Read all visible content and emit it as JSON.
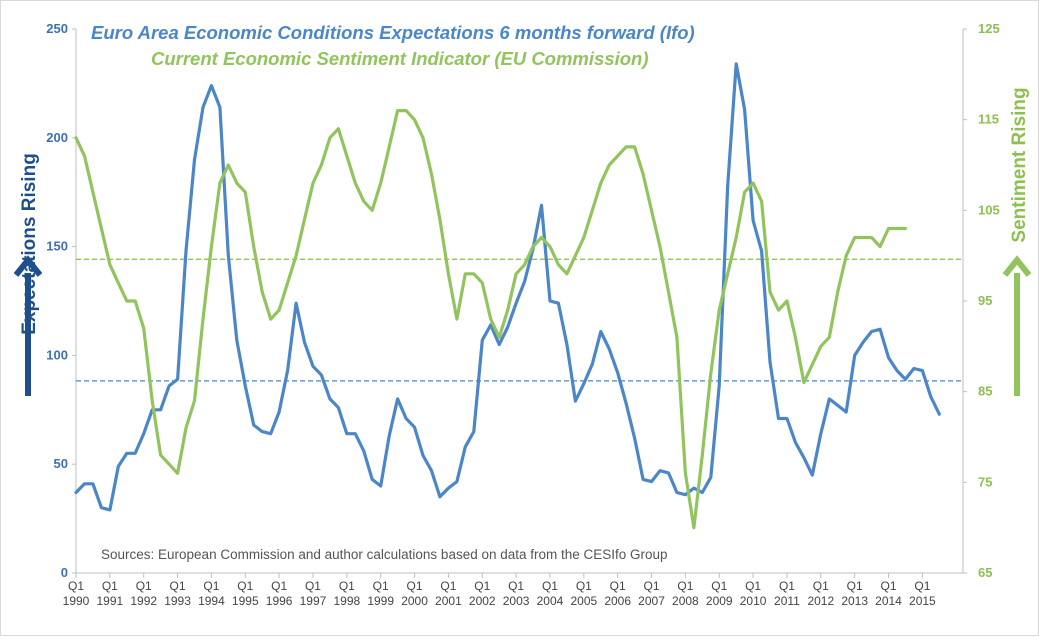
{
  "chart_data": {
    "type": "line",
    "title_series1": "Euro Area Economic Conditions Expectations 6 months forward (Ifo)",
    "title_series2": "Current Economic Sentiment Indicator (EU Commission)",
    "left_axis_label": "Expectations Rising",
    "right_axis_label": "Sentiment Rising",
    "source_note": "Sources: European Commission and author calculations based on data from the CESIfo Group",
    "colors": {
      "series1": "#4a86c8",
      "series2": "#92c45e",
      "axis_left_text": "#3f6fb3",
      "axis_right_text": "#8cc051",
      "arrow_left": "#1f4f8b",
      "arrow_right": "#92c45e"
    },
    "x_start_year": 1990,
    "x_end_year": 2015.75,
    "x_tick_quarter_label": "Q1",
    "x_tick_years": [
      "1990",
      "1991",
      "1992",
      "1993",
      "1994",
      "1995",
      "1996",
      "1997",
      "1998",
      "1999",
      "2000",
      "2001",
      "2002",
      "2003",
      "2004",
      "2005",
      "2006",
      "2007",
      "2008",
      "2009",
      "2010",
      "2011",
      "2012",
      "2013",
      "2014",
      "2015"
    ],
    "left_ylim": [
      0,
      250
    ],
    "left_ticks": [
      "0",
      "50",
      "100",
      "150",
      "200",
      "250"
    ],
    "right_ylim": [
      65,
      125
    ],
    "right_ticks": [
      "65",
      "75",
      "85",
      "95",
      "105",
      "115",
      "125"
    ],
    "series": [
      {
        "name": "Ifo Expectations (6 months forward)",
        "axis": "left",
        "start": 1990,
        "step": 0.25,
        "values": [
          37,
          41,
          41,
          30,
          29,
          49,
          55,
          55,
          64,
          75,
          75,
          86,
          89,
          148,
          190,
          214,
          224,
          214,
          146,
          107,
          86,
          68,
          65,
          64,
          74,
          93,
          124,
          106,
          95,
          91,
          80,
          76,
          64,
          64,
          56,
          43,
          40,
          63,
          80,
          71,
          67,
          54,
          47,
          35,
          39,
          42,
          58,
          65,
          107,
          114,
          105,
          113,
          124,
          134,
          149,
          169,
          125,
          124,
          105,
          79,
          87,
          96,
          111,
          103,
          92,
          78,
          62,
          43,
          42,
          47,
          46,
          37,
          36,
          39,
          37,
          44,
          86,
          178,
          234,
          213,
          162,
          148,
          97,
          71,
          71,
          60,
          53,
          45,
          64,
          80,
          77,
          74,
          100,
          106,
          111,
          112,
          99,
          93,
          89,
          94,
          93,
          81,
          73
        ]
      },
      {
        "name": "Economic Sentiment Indicator",
        "axis": "right",
        "start": 1990,
        "step": 0.25,
        "values": [
          113,
          111,
          107,
          103,
          99,
          97,
          95,
          95,
          92,
          84,
          78,
          77,
          76,
          81,
          84,
          93,
          101,
          108,
          110,
          108,
          107,
          101,
          96,
          93,
          94,
          97,
          100,
          104,
          108,
          110,
          113,
          114,
          111,
          108,
          106,
          105,
          108,
          112,
          116,
          116,
          115,
          113,
          109,
          104,
          98,
          93,
          98,
          98,
          97,
          93,
          91,
          94,
          98,
          99,
          101,
          102,
          101,
          99,
          98,
          100,
          102,
          105,
          108,
          110,
          111,
          112,
          112,
          109,
          105,
          101,
          96,
          91,
          76,
          70,
          78,
          87,
          94,
          98,
          102,
          107,
          108,
          106,
          96,
          94,
          95,
          91,
          86,
          88,
          90,
          91,
          96,
          100,
          102,
          102,
          102,
          101,
          103,
          103,
          103
        ]
      }
    ],
    "reference_lines": [
      {
        "axis": "left",
        "value": 88.3,
        "color": "#4a86c8",
        "style": "dashed"
      },
      {
        "axis": "right",
        "value": 99.6,
        "color": "#92c45e",
        "style": "dashed"
      }
    ]
  }
}
